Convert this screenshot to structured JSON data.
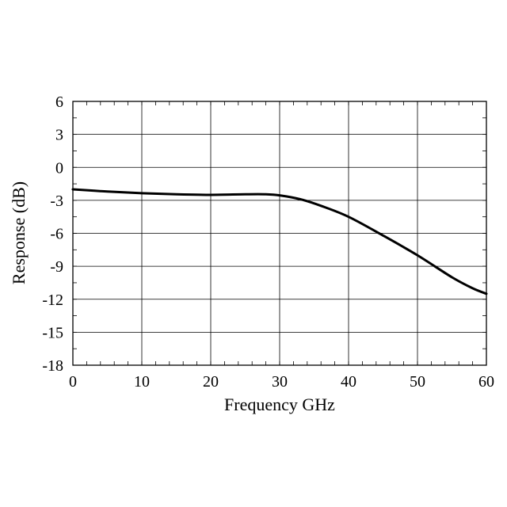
{
  "chart_data": {
    "type": "line",
    "title": "",
    "xlabel": "Frequency GHz",
    "ylabel": "Response (dB)",
    "xlim": [
      0,
      60
    ],
    "ylim": [
      -18,
      6
    ],
    "xticks": [
      0,
      10,
      20,
      30,
      40,
      50,
      60
    ],
    "yticks": [
      6,
      3,
      0,
      -3,
      -6,
      -9,
      -12,
      -15,
      -18
    ],
    "grid": true,
    "series": [
      {
        "x": [
          0,
          5,
          10,
          15,
          20,
          25,
          28,
          30,
          33,
          36,
          40,
          45,
          50,
          55,
          58,
          60
        ],
        "y": [
          -2.0,
          -2.2,
          -2.35,
          -2.45,
          -2.5,
          -2.45,
          -2.45,
          -2.55,
          -2.9,
          -3.5,
          -4.5,
          -6.2,
          -8.0,
          -10.0,
          -11.0,
          -11.5
        ],
        "color": "#000000"
      }
    ]
  }
}
